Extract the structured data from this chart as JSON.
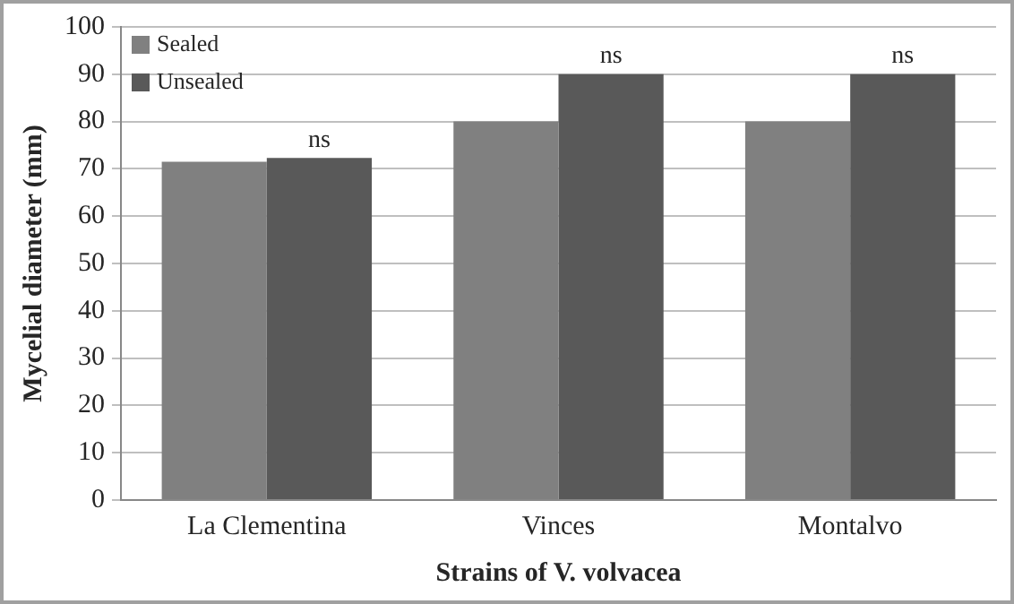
{
  "chart_data": {
    "type": "bar",
    "xlabel": "Strains of V. volvacea",
    "ylabel": "Mycelial diameter (mm)",
    "categories": [
      "La Clementina",
      "Vinces",
      "Montalvo"
    ],
    "series": [
      {
        "name": "Sealed",
        "color": "#808080",
        "values": [
          71.5,
          80,
          80
        ]
      },
      {
        "name": "Unsealed",
        "color": "#595959",
        "values": [
          72.3,
          90,
          90
        ]
      }
    ],
    "ylim": [
      0,
      100
    ],
    "yticks": [
      0,
      10,
      20,
      30,
      40,
      50,
      60,
      70,
      80,
      90,
      100
    ],
    "grid": "y",
    "legend": "top left",
    "annotations": [
      {
        "text": "ns",
        "x": "La Clementina",
        "y": 72.3
      },
      {
        "text": "ns",
        "x": "Vinces",
        "y": 90
      },
      {
        "text": "ns",
        "x": "Montalvo",
        "y": 90
      }
    ]
  }
}
